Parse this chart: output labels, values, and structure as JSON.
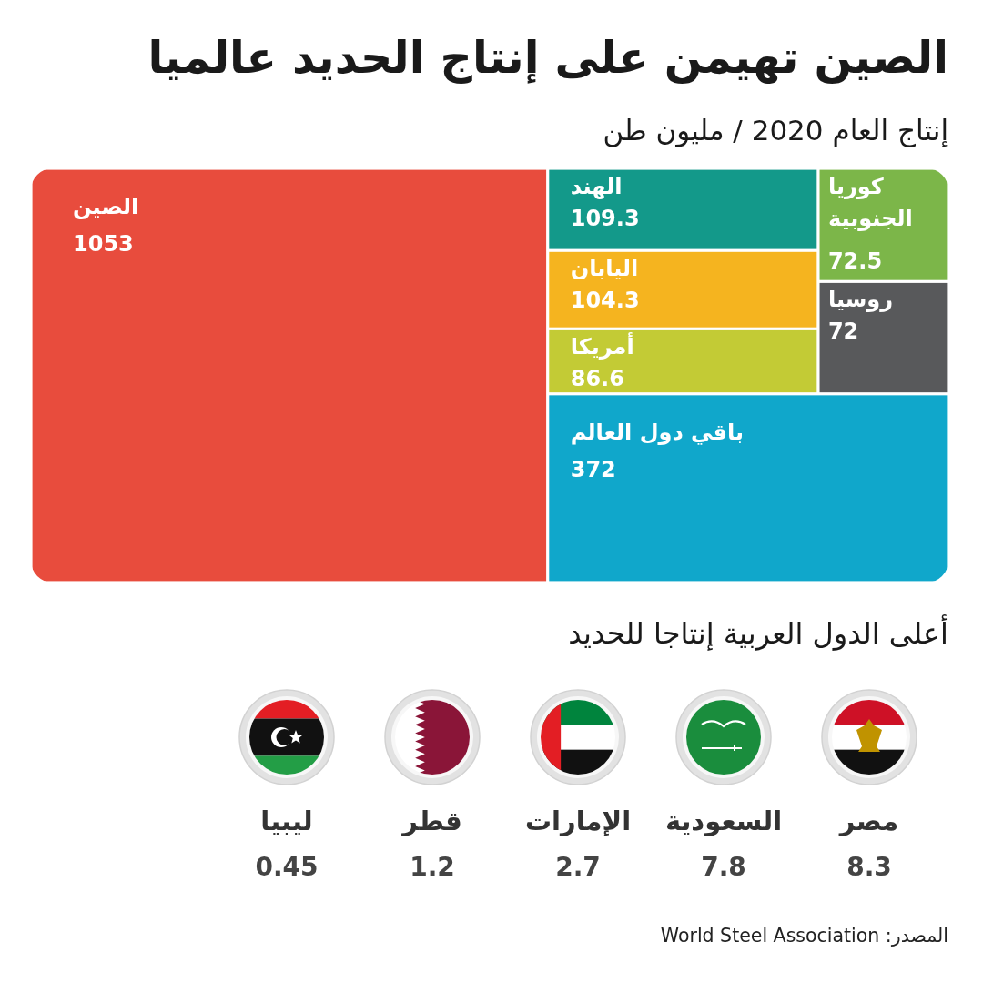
{
  "chart_data": [
    {
      "type": "other",
      "title": "الصين تهيمن على إنتاج الحديد عالميا",
      "subtitle": "إنتاج العام 2020 / مليون طن",
      "categories": [
        "الصين",
        "الهند",
        "اليابان",
        "أمريكا",
        "كوريا الجنوبية",
        "روسيا",
        "باقي دول العالم"
      ],
      "values": [
        1053,
        109.3,
        104.3,
        86.6,
        72.5,
        72,
        372
      ],
      "colors": [
        "#e84c3d",
        "#13998a",
        "#f5b41f",
        "#c3cb35",
        "#7cb649",
        "#58595b",
        "#10a7cb"
      ],
      "data_labels": true
    },
    {
      "type": "other",
      "title": "أعلى الدول العربية إنتاجا للحديد",
      "categories": [
        "ليبيا",
        "قطر",
        "الإمارات",
        "السعودية",
        "مصر"
      ],
      "values": [
        0.45,
        1.2,
        2.7,
        7.8,
        8.3
      ],
      "data_labels": true,
      "annotations": [
        "المصدر: World Steel Association"
      ]
    }
  ]
}
